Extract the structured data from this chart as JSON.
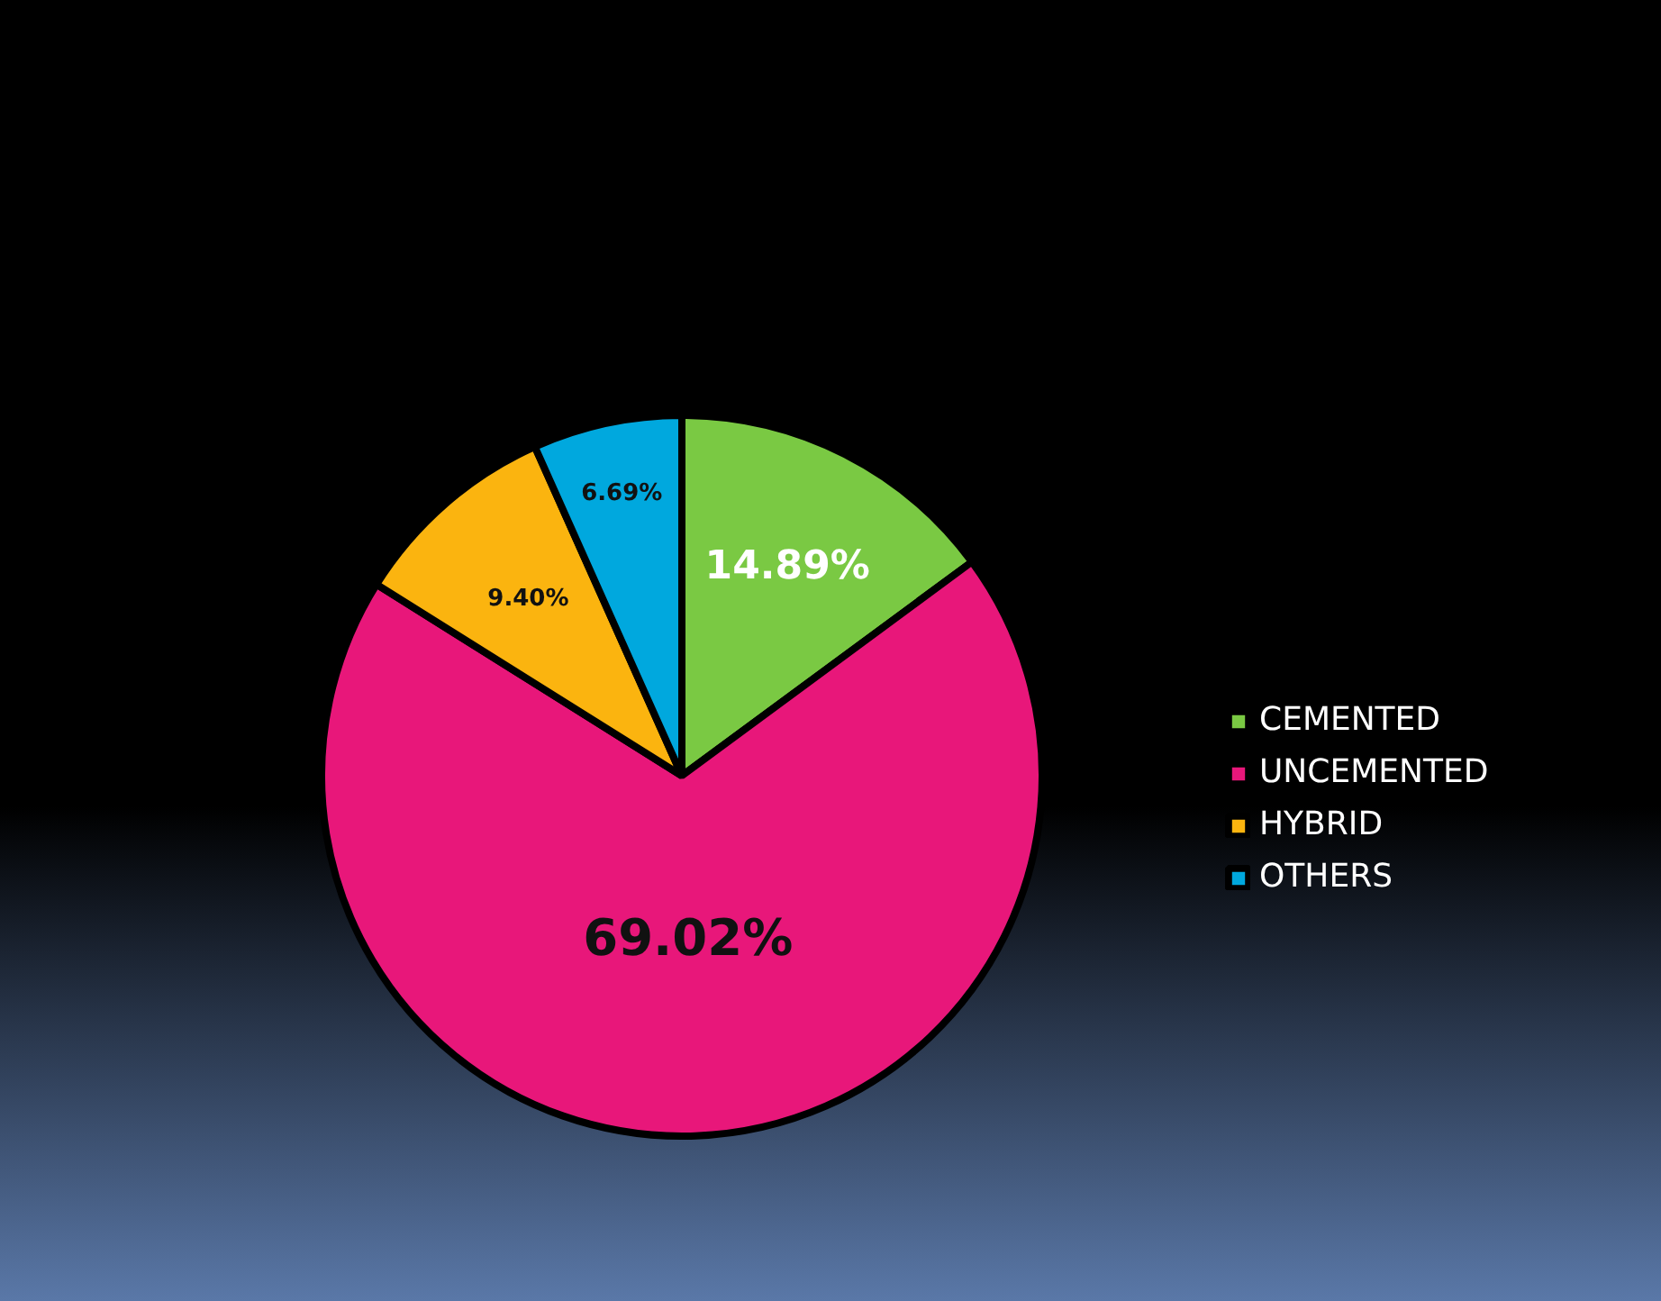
{
  "chart_data": {
    "type": "pie",
    "categories": [
      "CEMENTED",
      "UNCEMENTED",
      "HYBRID",
      "OTHERS"
    ],
    "values": [
      14.89,
      69.02,
      9.4,
      6.69
    ],
    "colors": [
      "#7ac943",
      "#e8177a",
      "#fbb40f",
      "#00a8de"
    ],
    "value_labels": [
      "14.89%",
      "69.02%",
      "9.40%",
      "6.69%"
    ],
    "legend": "right"
  }
}
